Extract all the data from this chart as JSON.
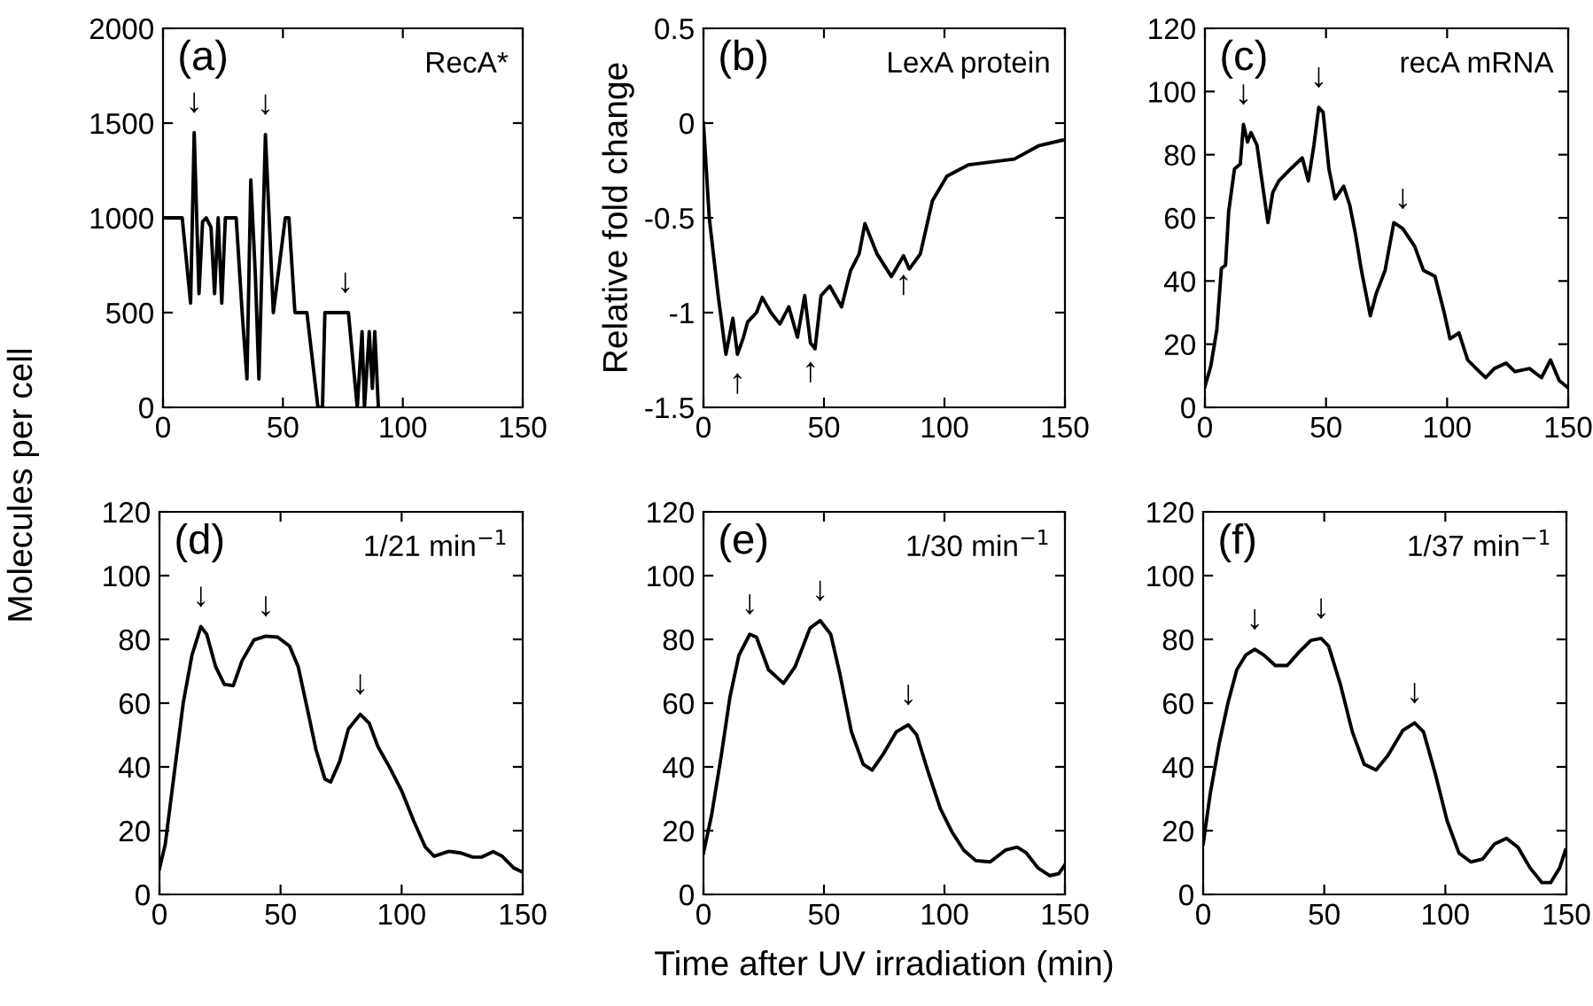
{
  "chart_data": [
    {
      "type": "line",
      "xlim": [
        0,
        150
      ],
      "ylim": [
        0,
        2000
      ],
      "xticks": [
        0,
        50,
        100,
        150
      ],
      "yticks": [
        0,
        500,
        1000,
        1500,
        2000
      ],
      "grid": false,
      "legend": false,
      "annotations": [
        "(a)",
        "RecA*",
        {
          "text": "↓",
          "x": 13,
          "y": 1450
        },
        {
          "text": "↓",
          "x": 42.7,
          "y": 1440
        },
        {
          "text": "↓",
          "x": 76,
          "y": 500
        }
      ],
      "series": [
        {
          "color": "#000000",
          "x": [
            0,
            8,
            11.5,
            13,
            15,
            16.5,
            18,
            20,
            21.5,
            23,
            24.5,
            26,
            30.5,
            33,
            35,
            36.6,
            38.5,
            40,
            42.7,
            46,
            51,
            52.5,
            55,
            60,
            64.6,
            66.5,
            67.5,
            77.3,
            81,
            83,
            84,
            86,
            87.3,
            88.3,
            89.8
          ],
          "values": [
            1000,
            1000,
            550,
            1450,
            600,
            980,
            1000,
            950,
            600,
            1000,
            550,
            1000,
            1000,
            500,
            150,
            1200,
            700,
            150,
            1440,
            500,
            1000,
            1000,
            500,
            500,
            0,
            0,
            500,
            500,
            0,
            400,
            0,
            400,
            100,
            400,
            0
          ]
        }
      ]
    },
    {
      "type": "line",
      "xlim": [
        0,
        150
      ],
      "ylim": [
        -1.5,
        0.5
      ],
      "xticks": [
        0,
        50,
        100,
        150
      ],
      "yticks": [
        -1.5,
        -1,
        -0.5,
        0,
        0.5
      ],
      "grid": false,
      "legend": false,
      "ylabel": "Relative fold change",
      "annotations": [
        "(b)",
        "LexA protein",
        {
          "text": "↑",
          "x": 14.1,
          "y": -1.22
        },
        {
          "text": "↑",
          "x": 44.4,
          "y": -1.16
        },
        {
          "text": "↑",
          "x": 83,
          "y": -0.7
        }
      ],
      "series": [
        {
          "color": "#000000",
          "x": [
            0,
            2.4,
            6.1,
            9.3,
            12.2,
            14.1,
            16.6,
            18.3,
            22,
            24.4,
            28,
            31.7,
            35.4,
            39,
            42,
            44.4,
            46.3,
            48.8,
            52.4,
            57.3,
            61,
            64.6,
            67,
            72,
            78,
            83,
            85.4,
            90,
            95,
            101,
            110,
            129,
            139,
            149,
            150
          ],
          "values": [
            0,
            -0.5,
            -0.91,
            -1.22,
            -1.03,
            -1.22,
            -1.13,
            -1.05,
            -1.0,
            -0.92,
            -1.0,
            -1.06,
            -0.97,
            -1.13,
            -0.91,
            -1.16,
            -1.19,
            -0.91,
            -0.86,
            -0.97,
            -0.78,
            -0.69,
            -0.53,
            -0.69,
            -0.81,
            -0.7,
            -0.77,
            -0.69,
            -0.41,
            -0.28,
            -0.22,
            -0.19,
            -0.12,
            -0.09,
            -0.09
          ]
        }
      ]
    },
    {
      "type": "line",
      "xlim": [
        0,
        150
      ],
      "ylim": [
        0,
        120
      ],
      "xticks": [
        0,
        50,
        100,
        150
      ],
      "yticks": [
        0,
        20,
        40,
        60,
        80,
        100,
        120
      ],
      "grid": false,
      "legend": false,
      "annotations": [
        "(c)",
        "recA mRNA",
        {
          "text": "↓",
          "x": 15.9,
          "y": 89.6
        },
        {
          "text": "↓",
          "x": 47,
          "y": 95
        },
        {
          "text": "↓",
          "x": 81.7,
          "y": 56.6
        }
      ],
      "series": [
        {
          "color": "#000000",
          "x": [
            0,
            2.4,
            4.9,
            6.8,
            8.5,
            9.8,
            12.2,
            14.6,
            15.9,
            17.6,
            19,
            21.5,
            23.2,
            26,
            28,
            30.5,
            35.4,
            40.2,
            42.7,
            45,
            47,
            48.8,
            51.2,
            53.7,
            57.3,
            59.8,
            62.2,
            64.6,
            68.3,
            70.7,
            74.4,
            78,
            81.7,
            86.6,
            90.2,
            95,
            98.8,
            101.2,
            104.9,
            108.5,
            112,
            115.9,
            119.5,
            124.4,
            128,
            134,
            139,
            142.7,
            146.3,
            150
          ],
          "values": [
            6.6,
            13,
            24.5,
            44,
            45,
            62,
            75.5,
            77,
            89.6,
            84,
            87,
            83,
            73.6,
            58.5,
            68,
            71.7,
            75.5,
            79,
            71.7,
            83,
            95,
            93.4,
            75.5,
            66,
            70,
            64,
            54.7,
            43.4,
            29,
            36,
            43.4,
            58.5,
            56.6,
            51,
            43.4,
            41.5,
            30,
            21.7,
            23.6,
            15,
            12.3,
            9.4,
            12.3,
            14,
            11.3,
            12.3,
            9.4,
            15,
            8.5,
            6.2
          ]
        }
      ]
    },
    {
      "type": "line",
      "xlim": [
        0,
        150
      ],
      "ylim": [
        0,
        120
      ],
      "xticks": [
        0,
        50,
        100,
        150
      ],
      "yticks": [
        0,
        20,
        40,
        60,
        80,
        100,
        120
      ],
      "grid": false,
      "legend": false,
      "ylabel": "Molecules per cell",
      "annotations": [
        "(d)",
        "1/21 min$^{−1}$",
        {
          "text": "↓",
          "x": 17.1,
          "y": 84
        },
        {
          "text": "↓",
          "x": 43.9,
          "y": 81
        },
        {
          "text": "↓",
          "x": 82.9,
          "y": 56.5
        }
      ],
      "series": [
        {
          "color": "#000000",
          "x": [
            0,
            2.4,
            6.1,
            9.8,
            13.4,
            17.1,
            19.5,
            23.2,
            26.8,
            30.5,
            34.1,
            39,
            43.9,
            48.8,
            53.7,
            57.3,
            61,
            64.6,
            68.3,
            70.7,
            74.4,
            78,
            82.9,
            86.6,
            90.2,
            95,
            100,
            104.9,
            109.8,
            113.4,
            119.5,
            124.4,
            129.3,
            133,
            137.8,
            141.5,
            146.3,
            150
          ],
          "values": [
            8,
            15.8,
            38,
            60,
            75,
            84,
            81.6,
            71.4,
            65.9,
            65.5,
            73.3,
            79.8,
            81,
            80.7,
            77.9,
            71.4,
            58.4,
            45.5,
            36.2,
            35.3,
            41.7,
            51.9,
            56.5,
            53.7,
            46.4,
            39.9,
            32.5,
            23.2,
            14.8,
            12,
            13.5,
            13,
            11.7,
            11.7,
            13.4,
            12,
            8.3,
            7
          ]
        }
      ]
    },
    {
      "type": "line",
      "xlim": [
        0,
        150
      ],
      "ylim": [
        0,
        120
      ],
      "xticks": [
        0,
        50,
        100,
        150
      ],
      "yticks": [
        0,
        20,
        40,
        60,
        80,
        100,
        120
      ],
      "grid": false,
      "legend": false,
      "xlabel": "Time after UV irradiation (min)",
      "annotations": [
        "(e)",
        "1/30 min$^{−1}$",
        {
          "text": "↓",
          "x": 19.2,
          "y": 81.6
        },
        {
          "text": "↓",
          "x": 48.4,
          "y": 85.9
        },
        {
          "text": "↓",
          "x": 85,
          "y": 53.2
        }
      ],
      "series": [
        {
          "color": "#000000",
          "x": [
            0,
            3.4,
            7.4,
            11,
            14.7,
            19.2,
            22,
            27,
            33.2,
            38,
            44.2,
            48.4,
            52.8,
            56.5,
            61.4,
            66.3,
            70,
            75,
            80,
            85,
            88.5,
            93.4,
            98.3,
            103.2,
            108,
            113,
            119,
            125.3,
            130.2,
            134,
            138.8,
            143.7,
            147.4,
            150
          ],
          "values": [
            13,
            25,
            43.6,
            62,
            75,
            81.6,
            80.7,
            70.5,
            66.2,
            71.4,
            83.5,
            85.9,
            81.6,
            69.6,
            51,
            40.8,
            39,
            44.5,
            51,
            53.2,
            50,
            38,
            26.9,
            19.5,
            13.9,
            10.6,
            10.2,
            13.9,
            14.8,
            13,
            8.3,
            5.9,
            6.5,
            9.3
          ]
        }
      ]
    },
    {
      "type": "line",
      "xlim": [
        0,
        150
      ],
      "ylim": [
        0,
        120
      ],
      "xticks": [
        0,
        50,
        100,
        150
      ],
      "yticks": [
        0,
        20,
        40,
        60,
        80,
        100,
        120
      ],
      "grid": false,
      "legend": false,
      "annotations": [
        "(f)",
        "1/37 min$^{−1}$",
        {
          "text": "↓",
          "x": 21.3,
          "y": 76.9
        },
        {
          "text": "↓",
          "x": 48.7,
          "y": 80.3
        },
        {
          "text": "↓",
          "x": 87.3,
          "y": 53.8
        }
      ],
      "series": [
        {
          "color": "#000000",
          "x": [
            0,
            2.9,
            6.6,
            10.3,
            13.9,
            17.6,
            21.3,
            25,
            29.8,
            34.7,
            39.6,
            44.5,
            48.7,
            51.8,
            56.7,
            61.6,
            66.5,
            71.4,
            76.3,
            82.4,
            87.3,
            91,
            95.8,
            100.7,
            105.6,
            110.5,
            115.4,
            120.3,
            125.2,
            130,
            135,
            139.9,
            143.5,
            147.2,
            149.6
          ],
          "values": [
            15.8,
            31.5,
            47.3,
            60.3,
            70.5,
            75.1,
            76.9,
            75.1,
            71.8,
            71.8,
            76,
            79.7,
            80.3,
            77.9,
            65.8,
            51,
            40.8,
            39,
            43.6,
            51.4,
            53.8,
            51,
            38,
            23.2,
            13,
            10.2,
            11.1,
            15.8,
            17.6,
            14.8,
            8.3,
            3.7,
            3.7,
            8.3,
            13.9
          ]
        }
      ]
    }
  ]
}
